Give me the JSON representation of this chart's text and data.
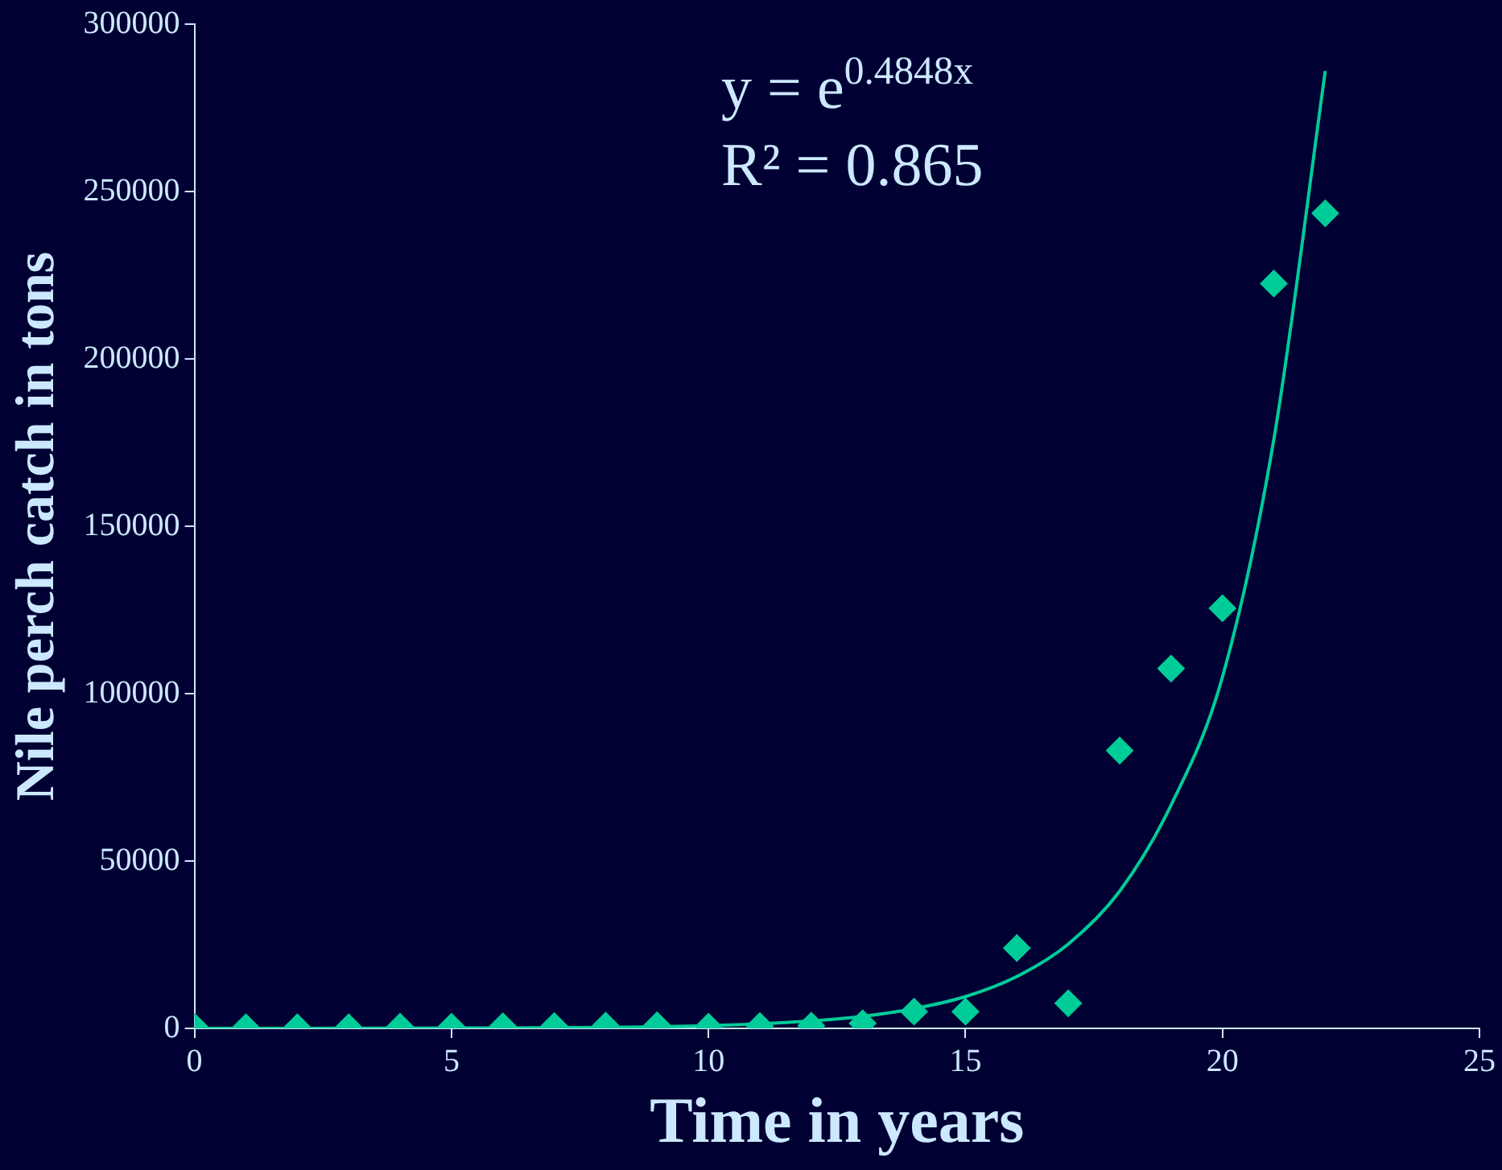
{
  "chart_data": {
    "type": "scatter",
    "xlabel": "Time in years",
    "ylabel": "Nile perch catch in tons",
    "xlim": [
      0,
      25
    ],
    "xticks": [
      0,
      5,
      10,
      15,
      20,
      25
    ],
    "ylim": [
      0,
      300000
    ],
    "yticks": [
      0,
      50000,
      100000,
      150000,
      200000,
      250000,
      300000
    ],
    "grid": false,
    "legend": false,
    "marker": "diamond",
    "annotations": [
      "y = e$^{0.4848x}$",
      "R² = 0.865"
    ],
    "series": [
      {
        "type": "scatter",
        "color": "#00cc99",
        "x": [
          0,
          1,
          2,
          3,
          4,
          5,
          6,
          7,
          8,
          9,
          10,
          11,
          12,
          13,
          14,
          15,
          16,
          17,
          18,
          19,
          20,
          21,
          22
        ],
        "values": [
          500,
          300,
          300,
          300,
          500,
          500,
          600,
          700,
          800,
          900,
          500,
          700,
          800,
          1500,
          5000,
          5000,
          24000,
          7500,
          83000,
          107500,
          125500,
          222500,
          243500
        ]
      },
      {
        "type": "line",
        "color": "#00cc99",
        "marker": "none",
        "x": [
          0,
          5,
          10,
          12,
          13,
          14,
          15,
          16,
          17,
          18,
          19,
          20,
          21,
          22
        ],
        "values": [
          0,
          100,
          800,
          2200,
          3600,
          5900,
          9500,
          15500,
          25200,
          41000,
          66700,
          105000,
          176000,
          286000
        ]
      }
    ]
  }
}
